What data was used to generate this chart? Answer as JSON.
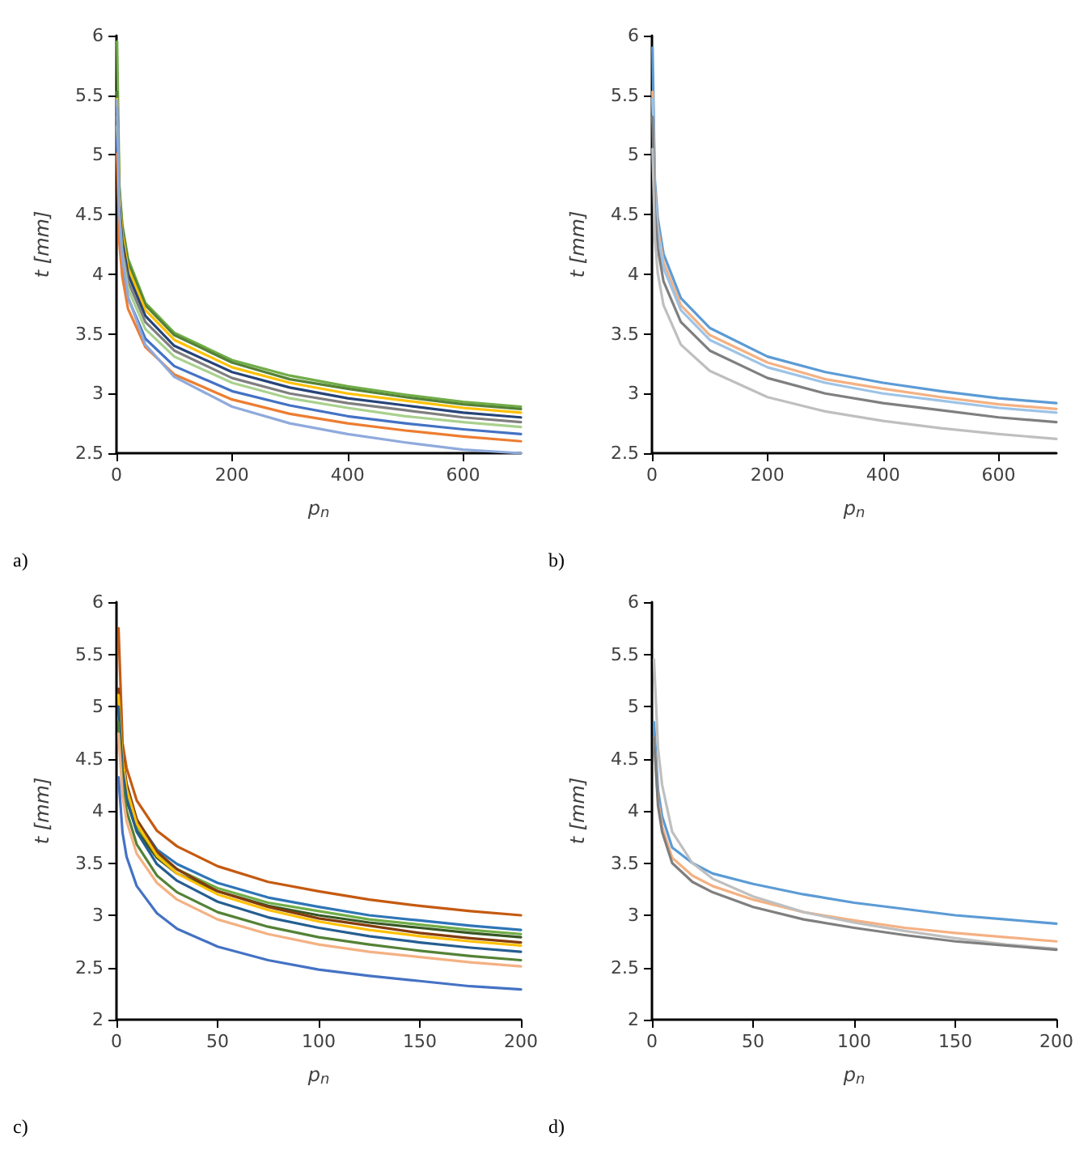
{
  "chart_data": [
    {
      "type": "line",
      "xlabel": "p$_{n}$",
      "ylabel": "t [mm]",
      "annotations": [
        "a)"
      ],
      "xlim": [
        0,
        700
      ],
      "xticks": [
        0,
        200,
        400,
        600
      ],
      "ylim": [
        2.5,
        6
      ],
      "yticks": [
        2.5,
        3,
        3.5,
        4,
        4.5,
        5,
        5.5,
        6
      ],
      "grid": false,
      "marker": "none",
      "line_style": "solid",
      "x": [
        1,
        5,
        10,
        20,
        50,
        100,
        200,
        300,
        400,
        500,
        600,
        700
      ],
      "series": [
        {
          "color": "#70ad47",
          "values": [
            5.95,
            4.74,
            4.42,
            4.13,
            3.76,
            3.51,
            3.28,
            3.15,
            3.06,
            2.99,
            2.93,
            2.89
          ]
        },
        {
          "color": "#548235",
          "values": [
            5.53,
            4.71,
            4.39,
            4.1,
            3.74,
            3.49,
            3.26,
            3.12,
            3.04,
            2.97,
            2.91,
            2.87
          ]
        },
        {
          "color": "#ffc000",
          "values": [
            5.47,
            4.66,
            4.34,
            4.05,
            3.7,
            3.45,
            3.22,
            3.09,
            3.0,
            2.94,
            2.88,
            2.84
          ]
        },
        {
          "color": "#264478",
          "values": [
            5.4,
            4.59,
            4.28,
            4.0,
            3.65,
            3.4,
            3.18,
            3.05,
            2.96,
            2.9,
            2.84,
            2.8
          ]
        },
        {
          "color": "#7f7f7f",
          "values": [
            5.32,
            4.53,
            4.22,
            3.94,
            3.6,
            3.36,
            3.13,
            3.0,
            2.92,
            2.86,
            2.8,
            2.76
          ]
        },
        {
          "color": "#a9d18e",
          "values": [
            5.24,
            4.46,
            4.16,
            3.88,
            3.54,
            3.31,
            3.09,
            2.96,
            2.88,
            2.81,
            2.76,
            2.72
          ]
        },
        {
          "color": "#4472c4",
          "values": [
            5.13,
            4.36,
            4.07,
            3.8,
            3.46,
            3.23,
            3.02,
            2.9,
            2.81,
            2.75,
            2.7,
            2.66
          ]
        },
        {
          "color": "#ed7d31",
          "values": [
            5.01,
            4.26,
            3.98,
            3.71,
            3.39,
            3.16,
            2.95,
            2.83,
            2.75,
            2.69,
            2.64,
            2.6
          ]
        },
        {
          "color": "#8faadc",
          "values": [
            5.46,
            4.5,
            4.14,
            3.81,
            3.41,
            3.14,
            2.89,
            2.75,
            2.66,
            2.59,
            2.53,
            2.5
          ]
        }
      ]
    },
    {
      "type": "line",
      "xlabel": "p$_{n}$",
      "ylabel": "t [mm]",
      "annotations": [
        "b)"
      ],
      "xlim": [
        0,
        700
      ],
      "xticks": [
        0,
        200,
        400,
        600
      ],
      "ylim": [
        2.5,
        6
      ],
      "yticks": [
        2.5,
        3,
        3.5,
        4,
        4.5,
        5,
        5.5,
        6
      ],
      "grid": false,
      "marker": "none",
      "line_style": "solid",
      "x": [
        1,
        5,
        10,
        20,
        50,
        100,
        200,
        300,
        400,
        500,
        600,
        700
      ],
      "series": [
        {
          "color": "#5b9bd5",
          "values": [
            5.9,
            4.79,
            4.47,
            4.17,
            3.8,
            3.55,
            3.31,
            3.18,
            3.09,
            3.02,
            2.96,
            2.92
          ]
        },
        {
          "color": "#f4b183",
          "values": [
            5.53,
            4.71,
            4.39,
            4.1,
            3.74,
            3.49,
            3.26,
            3.12,
            3.04,
            2.97,
            2.91,
            2.87
          ]
        },
        {
          "color": "#9dc3e6",
          "values": [
            5.47,
            4.66,
            4.34,
            4.05,
            3.7,
            3.45,
            3.22,
            3.09,
            3.0,
            2.94,
            2.88,
            2.84
          ]
        },
        {
          "color": "#7f7f7f",
          "values": [
            5.32,
            4.53,
            4.22,
            3.94,
            3.6,
            3.36,
            3.13,
            3.0,
            2.92,
            2.86,
            2.8,
            2.76
          ]
        },
        {
          "color": "#bfbfbf",
          "values": [
            5.05,
            4.3,
            4.01,
            3.74,
            3.41,
            3.19,
            2.97,
            2.85,
            2.77,
            2.71,
            2.66,
            2.62
          ]
        }
      ]
    },
    {
      "type": "line",
      "xlabel": "p$_{n}$",
      "ylabel": "t [mm]",
      "annotations": [
        "c)"
      ],
      "xlim": [
        0,
        200
      ],
      "xticks": [
        0,
        50,
        100,
        150,
        200
      ],
      "ylim": [
        2,
        6
      ],
      "yticks": [
        2,
        2.5,
        3,
        3.5,
        4,
        4.5,
        5,
        5.5,
        6
      ],
      "grid": false,
      "marker": "none",
      "line_style": "solid",
      "x": [
        1,
        3,
        5,
        10,
        20,
        30,
        50,
        75,
        100,
        125,
        150,
        175,
        200
      ],
      "series": [
        {
          "color": "#c55a11",
          "values": [
            5.75,
            4.65,
            4.41,
            4.1,
            3.81,
            3.66,
            3.47,
            3.32,
            3.23,
            3.15,
            3.09,
            3.04,
            3.0
          ]
        },
        {
          "color": "#2e75b6",
          "values": [
            4.97,
            4.43,
            4.2,
            3.91,
            3.63,
            3.49,
            3.31,
            3.17,
            3.08,
            3.0,
            2.95,
            2.9,
            2.86
          ]
        },
        {
          "color": "#70ad47",
          "values": [
            4.9,
            4.37,
            4.14,
            3.85,
            3.58,
            3.44,
            3.26,
            3.12,
            3.04,
            2.96,
            2.91,
            2.86,
            2.82
          ]
        },
        {
          "color": "#385723",
          "values": [
            4.84,
            4.32,
            4.1,
            3.81,
            3.55,
            3.4,
            3.23,
            3.09,
            3.0,
            2.93,
            2.88,
            2.83,
            2.79
          ]
        },
        {
          "color": "#843c0c",
          "values": [
            5.17,
            4.53,
            4.26,
            3.92,
            3.61,
            3.44,
            3.23,
            3.08,
            2.97,
            2.9,
            2.83,
            2.78,
            2.74
          ]
        },
        {
          "color": "#ffc000",
          "values": [
            5.11,
            4.48,
            4.21,
            3.88,
            3.57,
            3.4,
            3.2,
            3.05,
            2.94,
            2.86,
            2.8,
            2.75,
            2.71
          ]
        },
        {
          "color": "#255e91",
          "values": [
            5.0,
            4.39,
            4.12,
            3.8,
            3.49,
            3.33,
            3.13,
            2.98,
            2.88,
            2.8,
            2.74,
            2.69,
            2.65
          ]
        },
        {
          "color": "#548235",
          "values": [
            4.85,
            4.25,
            4.0,
            3.68,
            3.38,
            3.22,
            3.03,
            2.89,
            2.79,
            2.72,
            2.66,
            2.61,
            2.57
          ]
        },
        {
          "color": "#f4b183",
          "values": [
            4.74,
            4.15,
            3.9,
            3.59,
            3.31,
            3.15,
            2.96,
            2.82,
            2.72,
            2.65,
            2.6,
            2.55,
            2.51
          ]
        },
        {
          "color": "#4472c4",
          "values": [
            4.32,
            3.79,
            3.56,
            3.28,
            3.02,
            2.87,
            2.7,
            2.57,
            2.48,
            2.42,
            2.37,
            2.32,
            2.29
          ]
        }
      ]
    },
    {
      "type": "line",
      "xlabel": "p$_{n}$",
      "ylabel": "t [mm]",
      "annotations": [
        "d)"
      ],
      "xlim": [
        0,
        200
      ],
      "xticks": [
        0,
        50,
        100,
        150,
        200
      ],
      "ylim": [
        2,
        6
      ],
      "yticks": [
        2,
        2.5,
        3,
        3.5,
        4,
        4.5,
        5,
        5.5,
        6
      ],
      "grid": false,
      "marker": "none",
      "line_style": "solid",
      "x": [
        1,
        3,
        5,
        10,
        20,
        30,
        50,
        75,
        100,
        125,
        150,
        175,
        200
      ],
      "series": [
        {
          "color": "#5b9bd5",
          "values": [
            4.85,
            4.2,
            3.95,
            3.65,
            3.5,
            3.4,
            3.3,
            3.2,
            3.12,
            3.06,
            3.0,
            2.96,
            2.92
          ]
        },
        {
          "color": "#f4b183",
          "values": [
            4.7,
            4.1,
            3.85,
            3.55,
            3.38,
            3.28,
            3.15,
            3.03,
            2.95,
            2.88,
            2.83,
            2.79,
            2.75
          ]
        },
        {
          "color": "#bfbfbf",
          "values": [
            5.45,
            4.6,
            4.25,
            3.8,
            3.5,
            3.35,
            3.18,
            3.03,
            2.93,
            2.85,
            2.78,
            2.72,
            2.68
          ]
        },
        {
          "color": "#7f7f7f",
          "values": [
            4.7,
            4.05,
            3.8,
            3.5,
            3.32,
            3.22,
            3.08,
            2.96,
            2.88,
            2.81,
            2.75,
            2.71,
            2.67
          ]
        }
      ]
    }
  ]
}
